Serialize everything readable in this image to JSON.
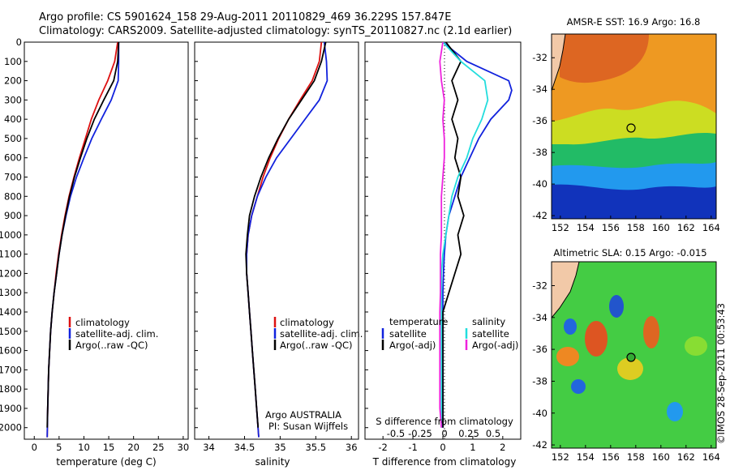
{
  "header": {
    "line1": "Argo profile: CS 5901624_158 29-Aug-2011 20110829_469 36.229S 157.847E",
    "line2": "Climatology: CARS2009. Satellite-adjusted climatology: synTS_20110827.nc (2.1d earlier)"
  },
  "colors": {
    "climatology": "#dd1111",
    "satellite": "#1122dd",
    "argo": "#000000",
    "salinity_sat": "#22dddd",
    "salinity_argo": "#ee22dd"
  },
  "depth_axis": {
    "ticks": [
      "0",
      "100",
      "200",
      "300",
      "400",
      "500",
      "600",
      "700",
      "800",
      "900",
      "1000",
      "1100",
      "1200",
      "1300",
      "1400",
      "1500",
      "1600",
      "1700",
      "1800",
      "1900",
      "2000"
    ],
    "ylim": [
      0,
      2060
    ]
  },
  "panel_temp": {
    "xlabel": "temperature (deg C)",
    "xticks": [
      "0",
      "5",
      "10",
      "15",
      "20",
      "25",
      "30"
    ],
    "legend": [
      "climatology",
      "satellite-adj. clim.",
      "Argo(..raw -QC)"
    ]
  },
  "panel_sal": {
    "xlabel": "salinity",
    "xticks": [
      "34",
      "34.5",
      "35",
      "35.5",
      "36"
    ],
    "legend": [
      "climatology",
      "satellite-adj. clim.",
      "Argo(..raw -QC)"
    ],
    "credit1": "Argo AUSTRALIA",
    "credit2": "PI: Susan Wijffels"
  },
  "panel_diff": {
    "xlabel": "T difference from climatology",
    "xticks": [
      "-2",
      "-1",
      "0",
      "1",
      "2"
    ],
    "top_label": "S difference from climatology",
    "top_ticks": [
      "-0.5",
      "-0.25",
      "0",
      "0.25",
      "0.5"
    ],
    "legend_left_title": "temperature",
    "legend_left": [
      "satellite",
      "Argo(-adj)"
    ],
    "legend_right_title": "salinity",
    "legend_right": [
      "satellite",
      "Argo(-adj)"
    ]
  },
  "map_sst": {
    "title": "AMSR-E SST: 16.9 Argo: 16.8",
    "xticks": [
      "152",
      "154",
      "156",
      "158",
      "160",
      "162",
      "164"
    ],
    "yticks": [
      "-32",
      "-34",
      "-36",
      "-38",
      "-40",
      "-42"
    ]
  },
  "map_sla": {
    "title": "Altimetric SLA: 0.15 Argo: -0.015",
    "xticks": [
      "152",
      "154",
      "156",
      "158",
      "160",
      "162",
      "164"
    ],
    "yticks": [
      "-32",
      "-34",
      "-36",
      "-38",
      "-40",
      "-42"
    ]
  },
  "side_credit": "©IMOS 28-Sep-2011 00:53:43",
  "chart_data": [
    {
      "type": "line",
      "xlabel": "temperature (deg C)",
      "ylabel": "",
      "xlim": [
        -2,
        31
      ],
      "ylim": [
        0,
        2060
      ],
      "series": [
        {
          "name": "climatology",
          "x": [
            16.8,
            16.2,
            14.8,
            13.0,
            11.5,
            10.3,
            9.1,
            8.0,
            7.0,
            6.2,
            5.5,
            4.9,
            4.4,
            4.0,
            3.6,
            3.3,
            3.1,
            2.9,
            2.8,
            2.7,
            2.6
          ],
          "y": [
            0,
            100,
            200,
            300,
            400,
            500,
            600,
            700,
            800,
            900,
            1000,
            1100,
            1200,
            1300,
            1400,
            1500,
            1600,
            1700,
            1800,
            1900,
            2050
          ]
        },
        {
          "name": "satellite-adj. clim.",
          "x": [
            17.0,
            17.0,
            16.9,
            15.5,
            13.5,
            11.6,
            10.0,
            8.5,
            7.3,
            6.4,
            5.6,
            5.0,
            4.5,
            4.0,
            3.6,
            3.3,
            3.1,
            2.9,
            2.8,
            2.7,
            2.6
          ],
          "y": [
            0,
            100,
            200,
            300,
            400,
            500,
            600,
            700,
            800,
            900,
            1000,
            1100,
            1200,
            1300,
            1400,
            1500,
            1600,
            1700,
            1800,
            1900,
            2050
          ]
        },
        {
          "name": "Argo(..raw -QC)",
          "x": [
            17.0,
            16.8,
            16.0,
            14.0,
            12.1,
            10.6,
            9.3,
            8.1,
            7.1,
            6.3,
            5.6,
            5.0,
            4.5,
            4.0,
            3.6,
            3.3,
            3.1,
            2.9,
            2.8,
            2.7,
            2.6
          ],
          "y": [
            0,
            100,
            200,
            300,
            400,
            500,
            600,
            700,
            800,
            900,
            1000,
            1100,
            1200,
            1300,
            1400,
            1500,
            1600,
            1700,
            1800,
            1900,
            2000
          ]
        }
      ]
    },
    {
      "type": "line",
      "xlabel": "salinity",
      "ylabel": "",
      "xlim": [
        33.8,
        36.1
      ],
      "ylim": [
        0,
        2060
      ],
      "series": [
        {
          "name": "climatology",
          "x": [
            35.58,
            35.55,
            35.45,
            35.28,
            35.12,
            34.98,
            34.86,
            34.76,
            34.68,
            34.6,
            34.55,
            34.53,
            34.53,
            34.55,
            34.57,
            34.59,
            34.61,
            34.63,
            34.65,
            34.67,
            34.7
          ],
          "y": [
            0,
            100,
            200,
            300,
            400,
            500,
            600,
            700,
            800,
            900,
            1000,
            1100,
            1200,
            1300,
            1400,
            1500,
            1600,
            1700,
            1800,
            1900,
            2050
          ]
        },
        {
          "name": "satellite-adj. clim.",
          "x": [
            35.62,
            35.65,
            35.66,
            35.55,
            35.35,
            35.15,
            34.95,
            34.8,
            34.68,
            34.6,
            34.55,
            34.53,
            34.53,
            34.55,
            34.57,
            34.59,
            34.61,
            34.63,
            34.65,
            34.67,
            34.7
          ],
          "y": [
            0,
            100,
            200,
            300,
            400,
            500,
            600,
            700,
            800,
            900,
            1000,
            1100,
            1200,
            1300,
            1400,
            1500,
            1600,
            1700,
            1800,
            1900,
            2050
          ]
        },
        {
          "name": "Argo(..raw -QC)",
          "x": [
            35.64,
            35.58,
            35.48,
            35.3,
            35.12,
            34.97,
            34.84,
            34.73,
            34.64,
            34.57,
            34.54,
            34.52,
            34.53,
            34.55,
            34.57,
            34.59,
            34.61,
            34.63,
            34.65,
            34.67,
            34.69
          ],
          "y": [
            0,
            100,
            200,
            300,
            400,
            500,
            600,
            700,
            800,
            900,
            1000,
            1100,
            1200,
            1300,
            1400,
            1500,
            1600,
            1700,
            1800,
            1900,
            2000
          ]
        }
      ]
    },
    {
      "type": "line",
      "xlabel": "T difference from climatology",
      "xlim": [
        -2.6,
        2.6
      ],
      "ylim": [
        0,
        2060
      ],
      "series": [
        {
          "name": "satellite",
          "x": [
            0.0,
            0.8,
            2.2,
            2.3,
            2.2,
            1.6,
            1.2,
            0.9,
            0.6,
            0.4,
            0.2,
            0.1,
            0.05,
            0.02,
            0.0,
            0.0,
            0.0,
            0.0,
            0.0,
            0.0,
            0.0
          ],
          "y": [
            0,
            100,
            200,
            250,
            300,
            400,
            500,
            600,
            700,
            800,
            900,
            1000,
            1100,
            1200,
            1300,
            1400,
            1500,
            1600,
            1700,
            1800,
            2000
          ]
        },
        {
          "name": "Argo(-adj)",
          "x": [
            0.1,
            0.6,
            0.3,
            0.5,
            0.3,
            0.5,
            0.4,
            0.6,
            0.5,
            0.7,
            0.5,
            0.6,
            0.4,
            0.2,
            0.0,
            0.0,
            0.0,
            0.0,
            0.0,
            0.0,
            0.0
          ],
          "y": [
            0,
            100,
            200,
            300,
            400,
            500,
            600,
            700,
            800,
            900,
            1000,
            1100,
            1200,
            1300,
            1400,
            1500,
            1600,
            1700,
            1800,
            1900,
            2000
          ]
        },
        {
          "name": "salinity satellite",
          "x": [
            0.0,
            0.6,
            1.4,
            1.5,
            1.3,
            1.0,
            0.8,
            0.5,
            0.3,
            0.2,
            0.1,
            0.0,
            -0.05,
            -0.05,
            -0.05,
            -0.05,
            -0.05,
            -0.05,
            -0.05,
            -0.05,
            -0.05
          ],
          "y": [
            0,
            100,
            200,
            300,
            400,
            500,
            600,
            700,
            800,
            900,
            1000,
            1100,
            1200,
            1300,
            1400,
            1500,
            1600,
            1700,
            1800,
            1900,
            2000
          ]
        },
        {
          "name": "salinity Argo(-adj)",
          "x": [
            0.0,
            -0.1,
            -0.05,
            0.05,
            0.0,
            0.05,
            0.05,
            0.0,
            -0.05,
            -0.05,
            -0.05,
            -0.08,
            -0.08,
            -0.08,
            -0.1,
            -0.1,
            -0.1,
            -0.1,
            -0.1,
            -0.1,
            -0.05
          ],
          "y": [
            0,
            100,
            200,
            300,
            400,
            500,
            600,
            700,
            800,
            900,
            1000,
            1100,
            1200,
            1300,
            1400,
            1500,
            1600,
            1700,
            1800,
            1900,
            2000
          ]
        }
      ]
    }
  ]
}
